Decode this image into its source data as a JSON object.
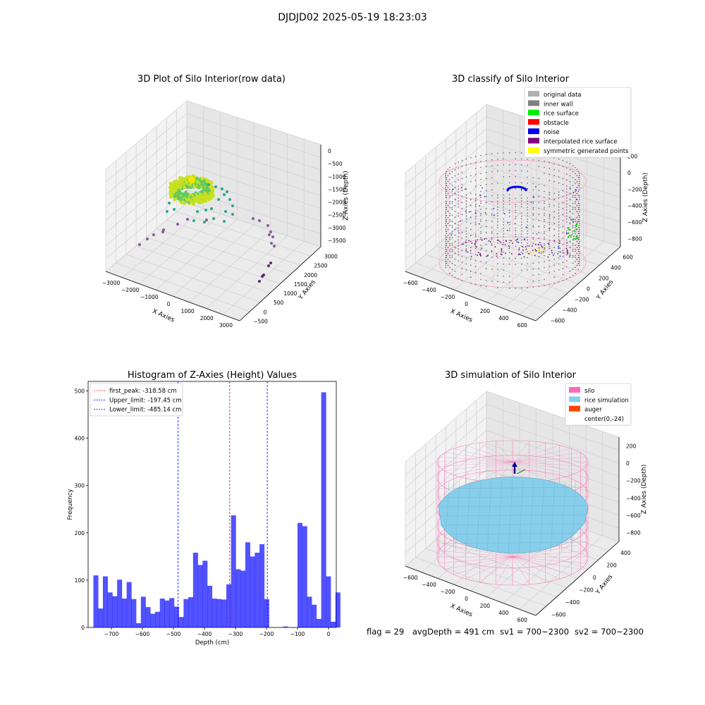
{
  "figure": {
    "suptitle": "DJDJD02 2025-05-19 18:23:03"
  },
  "chart_data": [
    {
      "id": "raw",
      "type": "scatter",
      "title": "3D Plot of Silo Interior(row data)",
      "xlabel": "X Axies",
      "ylabel": "Y Axies",
      "zlabel": "Z Axies (Depth)",
      "x_ticks": [
        "−3000",
        "−2000",
        "−1000",
        "0",
        "1000",
        "2000",
        "3000"
      ],
      "y_ticks": [
        "−500",
        "0",
        "500",
        "1000",
        "1500",
        "2000",
        "2500",
        "3000"
      ],
      "z_ticks": [
        "0",
        "−500",
        "−1000",
        "−1500",
        "−2000",
        "−2500",
        "−3000",
        "−3500"
      ],
      "colors": {
        "ring": "#c7e020",
        "ring_dark": "#5ec962",
        "teal": "#2ca58d",
        "purple": "#8b5a9e",
        "dark_purple": "#5b2a6e"
      }
    },
    {
      "id": "classify",
      "type": "scatter",
      "title": "3D classify of Silo Interior",
      "xlabel": "X Axies",
      "ylabel": "Y Axies",
      "zlabel": "Z Axies (Depth)",
      "x_ticks": [
        "−600",
        "−400",
        "−200",
        "0",
        "200",
        "400",
        "600"
      ],
      "y_ticks": [
        "−600",
        "−400",
        "−200",
        "0",
        "200",
        "400",
        "600"
      ],
      "z_ticks": [
        "200",
        "0",
        "−200",
        "−400",
        "−600",
        "−800"
      ],
      "legend": [
        {
          "label": "original data",
          "color": "#b0b0b0"
        },
        {
          "label": "inner wall",
          "color": "#808080"
        },
        {
          "label": "rice surface",
          "color": "#00ee00"
        },
        {
          "label": "obstacle",
          "color": "#ff0000"
        },
        {
          "label": "noise",
          "color": "#0000ee"
        },
        {
          "label": "interpolated rice surface",
          "color": "#800080"
        },
        {
          "label": "symmetric generated points",
          "color": "#ffff00"
        }
      ]
    },
    {
      "id": "hist",
      "type": "bar",
      "title": "Histogram of Z-Axies (Height) Values",
      "xlabel": "Depth (cm)",
      "ylabel": "Frequency",
      "xlim": [
        -775,
        25
      ],
      "ylim": [
        0,
        520
      ],
      "x_ticks": [
        -700,
        -600,
        -500,
        -400,
        -300,
        -200,
        -100,
        0
      ],
      "x_tick_labels": [
        "−700",
        "−600",
        "−500",
        "−400",
        "−300",
        "−200",
        "−100",
        "0"
      ],
      "y_ticks": [
        0,
        100,
        200,
        300,
        400,
        500
      ],
      "y_tick_labels": [
        "0",
        "100",
        "200",
        "300",
        "400",
        "500"
      ],
      "bar_color": "#0000ff",
      "bin_start": -758,
      "bin_width": 15.3,
      "values": [
        110,
        40,
        108,
        74,
        66,
        101,
        61,
        96,
        60,
        9,
        65,
        43,
        29,
        33,
        61,
        57,
        62,
        44,
        22,
        60,
        64,
        158,
        132,
        141,
        88,
        61,
        60,
        59,
        91,
        237,
        123,
        120,
        180,
        150,
        158,
        176,
        60,
        0,
        0,
        0,
        2,
        0,
        0,
        221,
        214,
        65,
        48,
        18,
        497,
        108,
        12,
        74
      ],
      "lines": [
        {
          "label": "first_peak: -318.58 cm",
          "value": -318.58,
          "color": "#ff0000"
        },
        {
          "label": "Upper_limit: -197.45 cm",
          "value": -197.45,
          "color": "#0000ff"
        },
        {
          "label": "Lower_limit: -485.14 cm",
          "value": -485.14,
          "color": "#0000ff"
        }
      ]
    },
    {
      "id": "sim",
      "type": "surface",
      "title": "3D simulation of Silo Interior",
      "xlabel": "X Axies",
      "ylabel": "Y Axies",
      "zlabel": "Z Axies (Depth)",
      "x_ticks": [
        "−600",
        "−400",
        "−200",
        "0",
        "200",
        "400",
        "600"
      ],
      "y_ticks": [
        "−600",
        "−400",
        "−200",
        "0",
        "200",
        "400"
      ],
      "z_ticks": [
        "200",
        "0",
        "−200",
        "−400",
        "−600",
        "−800"
      ],
      "legend": [
        {
          "label": "silo",
          "color": "#ff69b4"
        },
        {
          "label": "rice simulation",
          "color": "#87ceeb"
        },
        {
          "label": "auger",
          "color": "#ff4500"
        },
        {
          "label": "center(0,-24)",
          "color": "#ffffff"
        }
      ]
    }
  ],
  "footer": {
    "flag": "flag = 29",
    "avg_depth": "avgDepth = 491 cm",
    "sv1": "sv1 = 700~2300",
    "sv2": "sv2 = 700~2300"
  }
}
